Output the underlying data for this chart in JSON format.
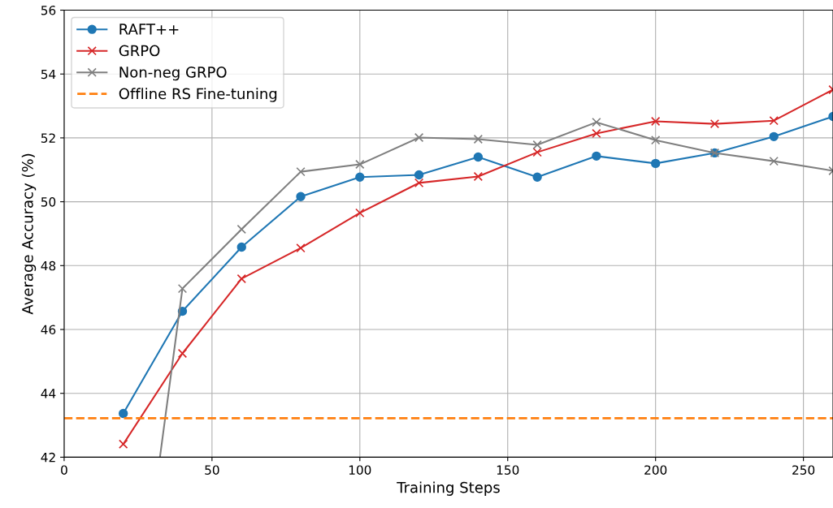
{
  "chart_data": {
    "type": "line",
    "xlabel": "Training Steps",
    "ylabel": "Average Accuracy (%)",
    "x": [
      20,
      40,
      60,
      80,
      100,
      120,
      140,
      160,
      180,
      200,
      220,
      240,
      260
    ],
    "series": [
      {
        "name": "RAFT++",
        "color": "#1f77b4",
        "marker": "circle",
        "values": [
          43.37,
          46.57,
          48.58,
          50.16,
          50.77,
          50.84,
          51.4,
          50.77,
          51.43,
          51.2,
          51.53,
          52.04,
          52.67
        ]
      },
      {
        "name": "GRPO",
        "color": "#d62728",
        "marker": "cross",
        "values": [
          42.41,
          45.25,
          47.59,
          48.55,
          49.65,
          50.59,
          50.79,
          51.55,
          52.14,
          52.52,
          52.44,
          52.54,
          53.51
        ]
      },
      {
        "name": "Non-neg GRPO",
        "color": "#7f7f7f",
        "marker": "cross",
        "x": [
          32.4,
          40,
          60,
          80,
          100,
          120,
          140,
          160,
          180,
          200,
          220,
          240,
          260
        ],
        "values": [
          42,
          47.28,
          49.14,
          50.94,
          51.17,
          52.01,
          51.96,
          51.78,
          52.49,
          51.93,
          51.53,
          51.27,
          50.97
        ]
      }
    ],
    "ref_lines": [
      {
        "axis": "y",
        "value": 43.22,
        "label": "Offline RS Fine-tuning",
        "color": "#ff7f0e",
        "line_style": "dashed"
      }
    ],
    "xlim": [
      0,
      260
    ],
    "xticks": [
      0,
      50,
      100,
      150,
      200,
      250
    ],
    "ylim": [
      42,
      56
    ],
    "yticks": [
      42,
      44,
      46,
      48,
      50,
      52,
      54,
      56
    ],
    "grid": true,
    "legend": "top left",
    "line_style": "solid"
  }
}
